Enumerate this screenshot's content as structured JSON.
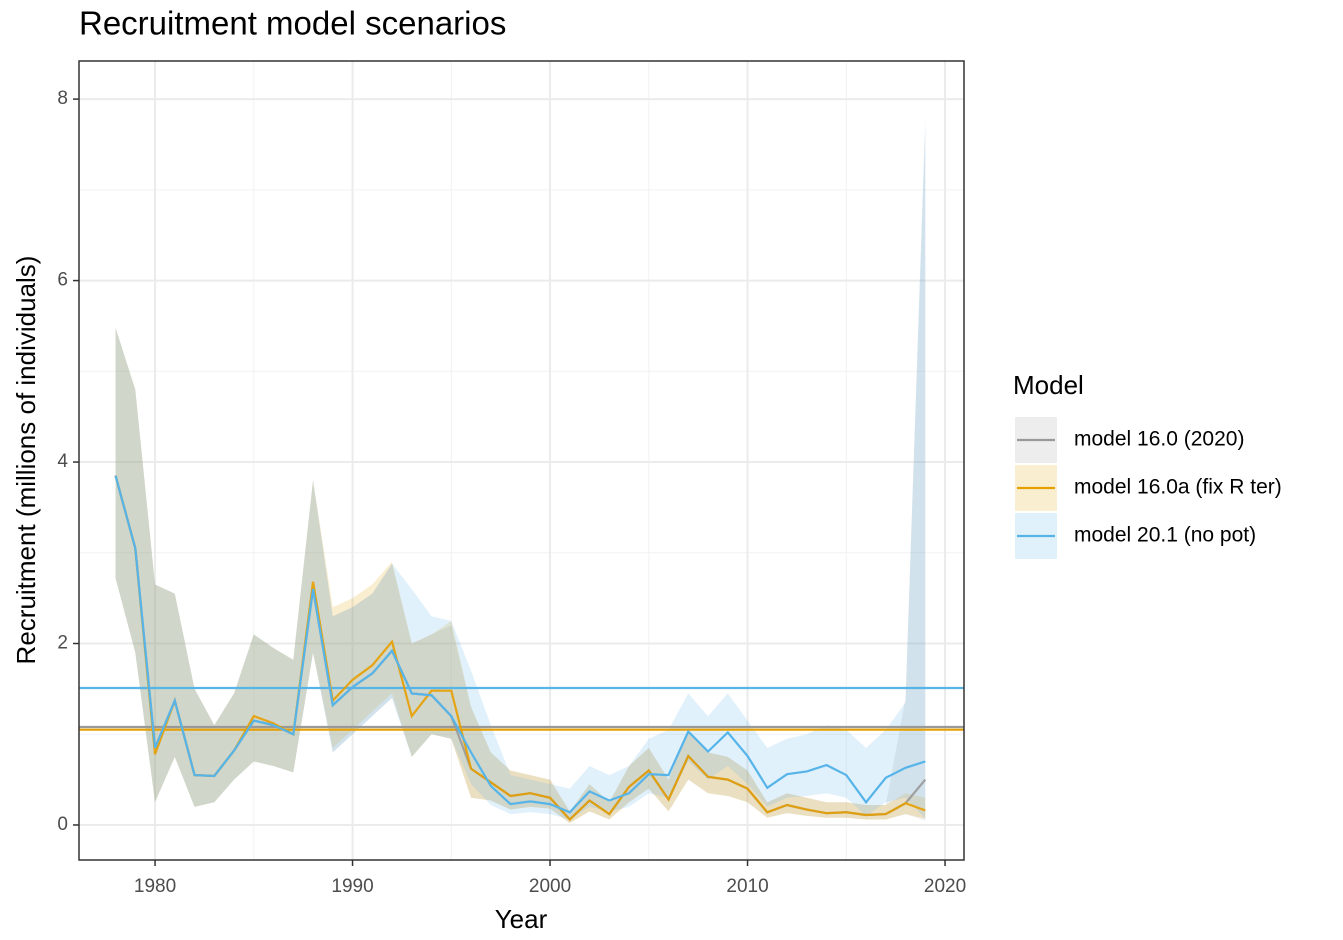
{
  "chart_data": {
    "type": "line",
    "title": "Recruitment model scenarios",
    "x_label": "Year",
    "y_label": "Recruitment (millions of individuals)",
    "legend_title": "Model",
    "x": [
      1978,
      1979,
      1980,
      1981,
      1982,
      1983,
      1984,
      1985,
      1986,
      1987,
      1988,
      1989,
      1990,
      1991,
      1992,
      1993,
      1994,
      1995,
      1996,
      1997,
      1998,
      1999,
      2000,
      2001,
      2002,
      2003,
      2004,
      2005,
      2006,
      2007,
      2008,
      2009,
      2010,
      2011,
      2012,
      2013,
      2014,
      2015,
      2016,
      2017,
      2018,
      2019
    ],
    "xlim": [
      1976.15,
      2020.96
    ],
    "xticks": [
      1980,
      1990,
      2000,
      2010,
      2020
    ],
    "ylim": [
      -0.386,
      8.42
    ],
    "yticks": [
      0,
      2,
      4,
      6,
      8
    ],
    "grid": true,
    "series": [
      {
        "name": "model 16.0 (2020)",
        "color": "#999999",
        "reference": 1.08,
        "values": [
          3.85,
          3.05,
          0.85,
          1.37,
          0.55,
          0.54,
          0.82,
          1.15,
          1.1,
          1.0,
          2.6,
          1.32,
          1.52,
          1.67,
          1.92,
          1.45,
          1.43,
          1.2,
          0.62,
          0.47,
          0.32,
          0.35,
          0.3,
          0.06,
          0.27,
          0.12,
          0.42,
          0.6,
          0.28,
          0.76,
          0.53,
          0.5,
          0.4,
          0.14,
          0.22,
          0.17,
          0.13,
          0.14,
          0.11,
          0.12,
          0.24,
          0.5
        ],
        "upper": [
          5.48,
          4.8,
          2.65,
          2.55,
          1.5,
          1.1,
          1.45,
          2.1,
          1.95,
          1.82,
          3.8,
          2.3,
          2.4,
          2.55,
          2.88,
          2.0,
          2.1,
          2.2,
          1.3,
          0.8,
          0.6,
          0.55,
          0.5,
          0.15,
          0.45,
          0.25,
          0.65,
          0.85,
          0.5,
          1.05,
          0.8,
          0.75,
          0.6,
          0.25,
          0.35,
          0.3,
          0.25,
          0.25,
          0.22,
          0.22,
          1.4,
          7.7
        ],
        "lower": [
          2.72,
          1.9,
          0.25,
          0.75,
          0.2,
          0.25,
          0.5,
          0.7,
          0.65,
          0.58,
          1.9,
          0.8,
          1.0,
          1.2,
          1.4,
          0.75,
          1.0,
          0.95,
          0.3,
          0.27,
          0.17,
          0.2,
          0.18,
          0.02,
          0.15,
          0.06,
          0.25,
          0.4,
          0.15,
          0.5,
          0.35,
          0.32,
          0.25,
          0.08,
          0.13,
          0.1,
          0.08,
          0.08,
          0.06,
          0.06,
          0.12,
          0.05
        ]
      },
      {
        "name": "model 16.0a (fix R ter)",
        "color": "#E69F00",
        "reference": 1.05,
        "values": [
          3.85,
          3.05,
          0.78,
          1.37,
          0.55,
          0.54,
          0.82,
          1.2,
          1.12,
          1.0,
          2.68,
          1.37,
          1.6,
          1.76,
          2.02,
          1.2,
          1.48,
          1.48,
          0.62,
          0.47,
          0.32,
          0.35,
          0.3,
          0.06,
          0.27,
          0.12,
          0.42,
          0.6,
          0.28,
          0.76,
          0.53,
          0.5,
          0.4,
          0.14,
          0.22,
          0.17,
          0.13,
          0.14,
          0.11,
          0.12,
          0.24,
          0.16
        ],
        "upper": [
          5.48,
          4.8,
          2.65,
          2.55,
          1.5,
          1.1,
          1.45,
          2.1,
          1.95,
          1.82,
          3.8,
          2.4,
          2.5,
          2.65,
          2.9,
          2.0,
          2.1,
          2.25,
          1.3,
          0.8,
          0.6,
          0.55,
          0.5,
          0.15,
          0.45,
          0.25,
          0.65,
          0.85,
          0.5,
          1.05,
          0.8,
          0.75,
          0.6,
          0.25,
          0.35,
          0.3,
          0.25,
          0.25,
          0.22,
          0.22,
          0.35,
          0.3
        ],
        "lower": [
          2.72,
          1.9,
          0.25,
          0.75,
          0.2,
          0.25,
          0.5,
          0.7,
          0.65,
          0.58,
          1.9,
          0.85,
          1.05,
          1.25,
          1.45,
          0.75,
          1.0,
          0.95,
          0.3,
          0.27,
          0.17,
          0.2,
          0.18,
          0.02,
          0.15,
          0.06,
          0.25,
          0.4,
          0.15,
          0.5,
          0.35,
          0.32,
          0.25,
          0.08,
          0.13,
          0.1,
          0.08,
          0.08,
          0.06,
          0.06,
          0.12,
          0.07
        ]
      },
      {
        "name": "model 20.1 (no pot)",
        "color": "#56B4E9",
        "reference": 1.51,
        "values": [
          3.85,
          3.05,
          0.85,
          1.37,
          0.55,
          0.54,
          0.82,
          1.15,
          1.1,
          1.0,
          2.6,
          1.32,
          1.52,
          1.67,
          1.92,
          1.45,
          1.43,
          1.2,
          0.8,
          0.43,
          0.23,
          0.26,
          0.23,
          0.14,
          0.37,
          0.27,
          0.35,
          0.56,
          0.55,
          1.03,
          0.81,
          1.02,
          0.76,
          0.41,
          0.56,
          0.59,
          0.66,
          0.55,
          0.25,
          0.52,
          0.63,
          0.7
        ],
        "upper": [
          5.48,
          4.8,
          2.65,
          2.55,
          1.5,
          1.1,
          1.45,
          2.1,
          1.95,
          1.82,
          3.8,
          2.3,
          2.4,
          2.55,
          2.88,
          2.6,
          2.3,
          2.25,
          1.7,
          1.1,
          0.55,
          0.5,
          0.45,
          0.4,
          0.65,
          0.55,
          0.65,
          0.95,
          1.05,
          1.45,
          1.2,
          1.45,
          1.15,
          0.85,
          0.95,
          1.0,
          1.1,
          1.05,
          0.85,
          1.05,
          1.35,
          7.8
        ],
        "lower": [
          2.72,
          1.9,
          0.25,
          0.75,
          0.2,
          0.25,
          0.5,
          0.7,
          0.65,
          0.58,
          1.9,
          0.8,
          1.0,
          1.2,
          1.4,
          0.75,
          1.0,
          0.95,
          0.45,
          0.22,
          0.12,
          0.14,
          0.12,
          0.06,
          0.2,
          0.15,
          0.2,
          0.35,
          0.3,
          0.7,
          0.5,
          0.65,
          0.45,
          0.2,
          0.3,
          0.32,
          0.35,
          0.3,
          0.1,
          0.25,
          0.3,
          0.07
        ]
      }
    ]
  }
}
